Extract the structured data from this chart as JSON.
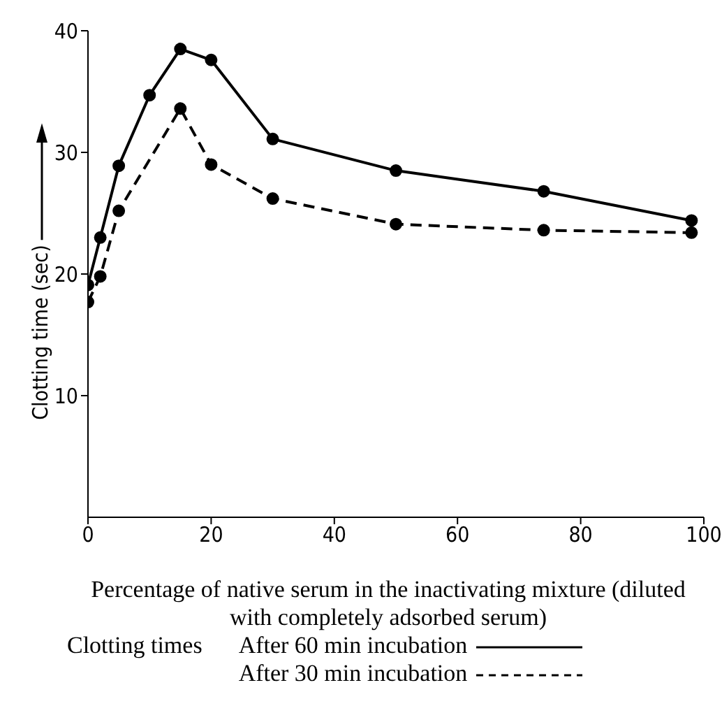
{
  "chart_data": {
    "type": "line",
    "xlabel": "Percentage of native serum in the inactivating mixture (diluted with completely adsorbed serum)",
    "ylabel": "Clotting time (sec)",
    "legend_title": "Clotting times",
    "legend": "bottom",
    "grid": false,
    "marker": "circle",
    "xlim": [
      0,
      100
    ],
    "xticks": [
      0,
      20,
      40,
      60,
      80,
      100
    ],
    "ylim": [
      0,
      40
    ],
    "yticks": [
      10,
      20,
      30,
      40
    ],
    "series": [
      {
        "name": "After 60 min incubation",
        "color": "#000000",
        "line_style": "solid",
        "x": [
          0,
          2,
          5,
          10,
          15,
          20,
          30,
          50,
          74,
          98
        ],
        "values": [
          19.1,
          23.0,
          28.9,
          34.7,
          38.5,
          37.6,
          31.1,
          28.5,
          26.8,
          24.4
        ]
      },
      {
        "name": "After 30 min incubation",
        "color": "#000000",
        "line_style": "dashed",
        "x": [
          0,
          2,
          5,
          15,
          20,
          30,
          50,
          74,
          98
        ],
        "values": [
          17.7,
          19.8,
          25.2,
          33.6,
          29.0,
          26.2,
          24.1,
          23.6,
          23.4
        ]
      }
    ]
  }
}
